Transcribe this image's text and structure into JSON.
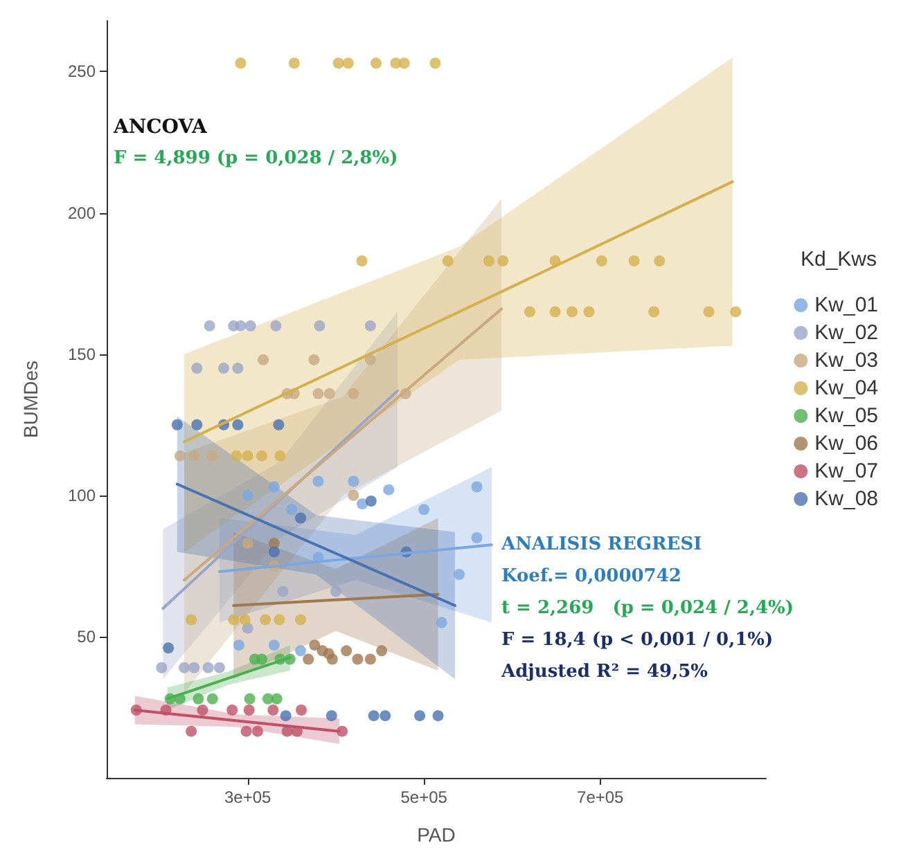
{
  "chart_data": {
    "type": "scatter",
    "xlabel": "PAD",
    "ylabel": "BUMDes",
    "legend_title": "Kd_Kws",
    "legend": "right",
    "grid": false,
    "marker": "circle",
    "xlim": [
      140000,
      888000
    ],
    "ylim": [
      0,
      268
    ],
    "xticks": [
      {
        "value": 300000,
        "label": "3e+05"
      },
      {
        "value": 500000,
        "label": "5e+05"
      },
      {
        "value": 700000,
        "label": "7e+05"
      }
    ],
    "yticks": [
      50,
      100,
      150,
      200,
      250
    ],
    "annotations": [
      "ANCOVA",
      "F = 4,899 (p = 0,028 / 2,8%)",
      "ANALISIS REGRESI",
      "Koef.= 0,0000742",
      "t = 2,269   (p = 0,024 / 2,4%)",
      "F = 18,4 (p < 0,001 / 0,1%)",
      "Adjusted R² = 49,5%"
    ],
    "series": [
      {
        "name": "Kw_01",
        "color": "#7ba7e0",
        "x": [
          300000,
          330000,
          350000,
          380000,
          420000,
          430000,
          460000,
          500000,
          560000,
          560000,
          540000,
          520000,
          380000,
          330000,
          290000,
          360000
        ],
        "values": [
          100,
          103,
          95,
          105,
          105,
          97,
          102,
          95,
          103,
          85,
          72,
          55,
          78,
          47,
          47,
          45
        ]
      },
      {
        "name": "Kw_02",
        "color": "#9aa5c8",
        "x": [
          256800,
          284000,
          292000,
          303200,
          332000,
          381600,
          439200,
          242400,
          272800,
          288800,
          202400,
          228000,
          239200,
          255200,
          268000,
          300000,
          340000,
          400000
        ],
        "values": [
          160,
          160,
          160,
          160,
          160,
          160,
          160,
          145,
          145,
          145,
          39,
          39,
          39,
          39,
          39,
          53,
          66,
          66
        ]
      },
      {
        "name": "Kw_03",
        "color": "#c8a982",
        "x": [
          344800,
          352800,
          380000,
          392800,
          420000,
          479200,
          317600,
          375200,
          439200,
          223200,
          239200,
          260000,
          300000,
          330000,
          420000
        ],
        "values": [
          136,
          136,
          136,
          136,
          136,
          136,
          148,
          148,
          148,
          114,
          114,
          114,
          83,
          75,
          100
        ]
      },
      {
        "name": "Kw_04",
        "color": "#d4b04c",
        "x": [
          292000,
          352800,
          403000,
          414000,
          445600,
          468000,
          477600,
          512800,
          429600,
          527200,
          573600,
          589600,
          648800,
          701600,
          738400,
          767200,
          620000,
          648800,
          668000,
          687200,
          760800,
          823200,
          853600,
          287200,
          300000,
          316000,
          336800,
          236000,
          284000,
          297000,
          320000,
          336000,
          360000
        ],
        "values": [
          253,
          253,
          253,
          253,
          253,
          253,
          253,
          253,
          183,
          183,
          183,
          183,
          183,
          183,
          183,
          183,
          165,
          165,
          165,
          165,
          165,
          165,
          165,
          114,
          114,
          114,
          114,
          56,
          56,
          56,
          56,
          56,
          56
        ]
      },
      {
        "name": "Kw_05",
        "color": "#4caf50",
        "x": [
          212000,
          223200,
          244000,
          260000,
          302400,
          323000,
          333000,
          308000,
          316000,
          336800,
          348000
        ],
        "values": [
          28,
          28,
          28,
          28,
          28,
          28,
          28,
          42,
          42,
          42,
          42
        ]
      },
      {
        "name": "Kw_06",
        "color": "#a07850",
        "x": [
          368800,
          384800,
          396000,
          412000,
          424800,
          439200,
          452000,
          376000,
          392000,
          330000
        ],
        "values": [
          42,
          45,
          42,
          45,
          42,
          42,
          45,
          47,
          44,
          83
        ]
      },
      {
        "name": "Kw_07",
        "color": "#c05068",
        "x": [
          173600,
          207200,
          248800,
          282400,
          301600,
          328800,
          360800,
          236000,
          298400,
          311200,
          344800,
          356000,
          407200
        ],
        "values": [
          24,
          24,
          24,
          24,
          24,
          24,
          24,
          16.5,
          16.5,
          16.5,
          16.5,
          16.5,
          16.5
        ]
      },
      {
        "name": "Kw_08",
        "color": "#4a72b0",
        "x": [
          220000,
          242400,
          272800,
          288800,
          335200,
          330000,
          360000,
          440000,
          480000,
          443000,
          456000,
          495200,
          516000,
          395200,
          343200,
          210000
        ],
        "values": [
          125,
          125,
          125,
          125,
          125,
          80,
          92,
          98,
          80,
          22,
          22,
          22,
          22,
          22,
          22,
          46
        ]
      },
      {
        "type": "line",
        "marker": "none",
        "color": "#7ba7e0",
        "x": [
          268000,
          422400,
          576800
        ],
        "values": [
          73,
          77.8,
          82.5
        ],
        "lower": [
          55,
          70,
          55
        ],
        "upper": [
          92,
          86,
          110
        ]
      },
      {
        "type": "line",
        "marker": "none",
        "color": "#9aa5c8",
        "x": [
          204000,
          337000,
          470000
        ],
        "values": [
          60,
          98.5,
          137
        ],
        "lower": [
          35,
          85,
          110
        ],
        "upper": [
          88,
          112,
          165
        ]
      },
      {
        "type": "line",
        "marker": "none",
        "color": "#c8a982",
        "x": [
          228000,
          408000,
          588000
        ],
        "values": [
          70,
          118,
          166
        ],
        "lower": [
          30,
          100,
          130
        ],
        "upper": [
          115,
          135,
          205
        ]
      },
      {
        "type": "line",
        "marker": "none",
        "color": "#d4b04c",
        "x": [
          228000,
          540000,
          850000
        ],
        "values": [
          119,
          165,
          211
        ],
        "lower": [
          80,
          148,
          153
        ],
        "upper": [
          150,
          188,
          255
        ]
      },
      {
        "type": "line",
        "marker": "none",
        "color": "#4caf50",
        "x": [
          208800,
          278400,
          348000
        ],
        "values": [
          28,
          35.3,
          42.6
        ],
        "lower": [
          24,
          33,
          38
        ],
        "upper": [
          32,
          37.6,
          47
        ]
      },
      {
        "type": "line",
        "marker": "none",
        "color": "#a07850",
        "x": [
          284000,
          400000,
          516000
        ],
        "values": [
          61,
          63,
          65
        ],
        "lower": [
          35,
          52,
          38
        ],
        "upper": [
          87,
          74,
          92
        ]
      },
      {
        "type": "line",
        "marker": "none",
        "color": "#c05068",
        "x": [
          172000,
          288000,
          404000
        ],
        "values": [
          24,
          20.2,
          16.5
        ],
        "lower": [
          19,
          18,
          12
        ],
        "upper": [
          29,
          22.5,
          21
        ]
      },
      {
        "type": "line",
        "marker": "none",
        "color": "#4a72b0",
        "x": [
          220000,
          377600,
          535200
        ],
        "values": [
          104,
          82.5,
          61
        ],
        "lower": [
          80,
          72,
          35
        ],
        "upper": [
          128,
          93,
          87
        ]
      }
    ]
  }
}
